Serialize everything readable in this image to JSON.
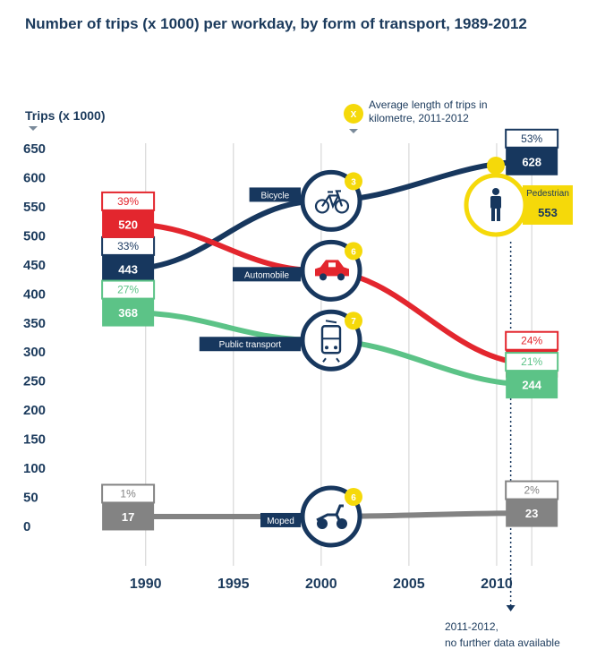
{
  "chart_data": {
    "type": "line",
    "title": "Number of trips (x 1000) per workday, by form of transport, 1989-2012",
    "ylabel": "Trips (x 1000)",
    "ylim": [
      0,
      650
    ],
    "yticks": [
      "650",
      "600",
      "550",
      "500",
      "450",
      "400",
      "350",
      "300",
      "250",
      "200",
      "150",
      "100",
      "50",
      "0"
    ],
    "xticks": [
      "1990",
      "1995",
      "2000",
      "2005",
      "2010"
    ],
    "xlim": [
      1986.7,
      2015
    ],
    "grid": "vertical",
    "legend_note": "Average length of trips in kilometre, 2011-2012",
    "legend_badge": "X",
    "footnote_line1": "2011-2012,",
    "footnote_line2": "no further data available",
    "series": [
      {
        "name": "Bicycle",
        "color": "#17375e",
        "x": [
          1989,
          2000,
          2012
        ],
        "values": [
          443,
          560,
          628
        ],
        "start_pct": "33%",
        "start_value": "443",
        "end_pct": "53%",
        "end_value": "628",
        "trip_km": "3"
      },
      {
        "name": "Automobile",
        "color": "#e3262e",
        "x": [
          1989,
          2000,
          2012
        ],
        "values": [
          520,
          440,
          280
        ],
        "start_pct": "39%",
        "start_value": "520",
        "end_pct": "24%",
        "end_value": "280",
        "trip_km": "6"
      },
      {
        "name": "Public transport",
        "color": "#5cc387",
        "x": [
          1989,
          2000,
          2012
        ],
        "values": [
          368,
          320,
          244
        ],
        "start_pct": "27%",
        "start_value": "368",
        "end_pct": "21%",
        "end_value": "244",
        "trip_km": "7"
      },
      {
        "name": "Moped",
        "color": "#838383",
        "x": [
          1989,
          2000,
          2012
        ],
        "values": [
          17,
          17,
          23
        ],
        "start_pct": "1%",
        "start_value": "17",
        "end_pct": "2%",
        "end_value": "23",
        "trip_km": "6"
      }
    ],
    "pedestrian": {
      "name": "Pedestrian",
      "value": "553",
      "color": "#f5d90a"
    }
  }
}
